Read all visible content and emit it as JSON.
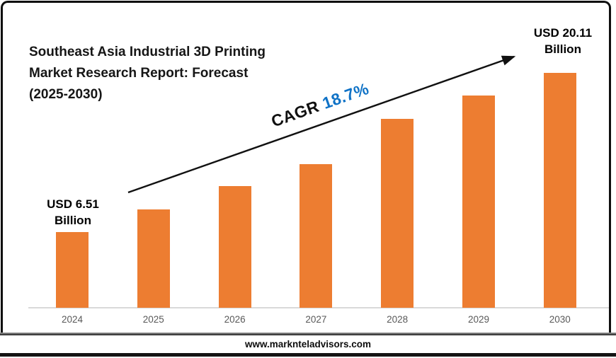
{
  "title": {
    "lines": [
      "Southeast Asia Industrial 3D Printing",
      "Market Research Report: Forecast",
      "(2025-2030)"
    ]
  },
  "cagr": {
    "prefix": "CAGR",
    "value": "18.7%"
  },
  "value_labels": {
    "start": {
      "line1": "USD 6.51",
      "line2": "Billion"
    },
    "end": {
      "line1": "USD 20.11",
      "line2": "Billion"
    }
  },
  "footer": {
    "url": "www.marknteladvisors.com"
  },
  "colors": {
    "bar": "#ED7D31",
    "cagr_accent": "#0F72C6",
    "arrow": "#111111",
    "axis_line": "#D9D9D9",
    "year_label": "#595959"
  },
  "chart_data": {
    "type": "bar",
    "title": "Southeast Asia Industrial 3D Printing Market Research Report: Forecast (2025-2030)",
    "categories": [
      "2024",
      "2025",
      "2026",
      "2027",
      "2028",
      "2029",
      "2030"
    ],
    "values": [
      6.51,
      8.4,
      10.4,
      12.3,
      16.2,
      18.2,
      20.11
    ],
    "unit": "USD Billion",
    "data_labels": {
      "2024": "USD 6.51 Billion",
      "2030": "USD 20.11 Billion"
    },
    "annotations": [
      "CAGR 18.7%"
    ],
    "xlabel": "",
    "ylabel": "",
    "ylim": [
      0,
      22
    ],
    "grid": false,
    "legend": false,
    "values_note": "Only 2024 and 2030 values are labeled on the chart; intermediate values estimated from bar heights."
  }
}
